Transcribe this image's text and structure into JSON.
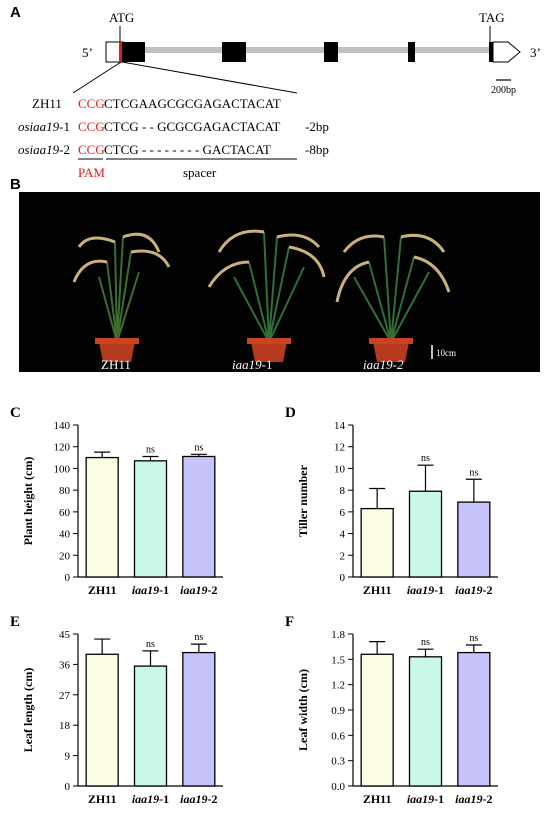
{
  "panelA": {
    "letter": "A",
    "five_prime": "5’",
    "three_prime": "3’",
    "atg": "ATG",
    "tag": "TAG",
    "scale": "200bp",
    "rows": [
      {
        "name": "ZH11",
        "pam": "CCG",
        "seq": "CTCGAAGCGCGAGACTACAT",
        "note": ""
      },
      {
        "name_italic": "osiaa19",
        "name_suffix": "-1",
        "pam": "CCG",
        "seq": "CTCG - - GCGCGAGACTACAT",
        "note": "-2bp"
      },
      {
        "name_italic": "osiaa19",
        "name_suffix": "-2",
        "pam": "CCG",
        "seq": "CTCG - - - - - - - - GACTACAT",
        "note": "-8bp"
      }
    ],
    "pam_label": "PAM",
    "spacer_label": "spacer",
    "colors": {
      "pam": "#e8191e",
      "intron": "#bfbfbf",
      "exon": "#000000"
    }
  },
  "panelB": {
    "letter": "B",
    "labels": [
      {
        "text": "ZH11",
        "italic": false
      },
      {
        "text_italic": "iaa19",
        "suffix": "-1"
      },
      {
        "text_italic": "iaa19-2",
        "suffix": ""
      }
    ],
    "scale": "10cm"
  },
  "chart_data": [
    {
      "letter": "C",
      "type": "bar",
      "categories": [
        "ZH11",
        "iaa19-1",
        "iaa19-2"
      ],
      "values": [
        110,
        107,
        111
      ],
      "errors": [
        5,
        4,
        2
      ],
      "sig": [
        "",
        "ns",
        "ns"
      ],
      "ylabel": "Plant height (cm)",
      "ylim": [
        0,
        140
      ],
      "yticks": [
        "0",
        "20",
        "40",
        "60",
        "80",
        "100",
        "120",
        "140"
      ],
      "colors": [
        "#fdfde3",
        "#c9f8ea",
        "#c6c4fb"
      ]
    },
    {
      "letter": "D",
      "type": "bar",
      "categories": [
        "ZH11",
        "iaa19-1",
        "iaa19-2"
      ],
      "values": [
        6.3,
        7.9,
        6.9
      ],
      "errors": [
        1.85,
        2.4,
        2.1
      ],
      "sig": [
        "",
        "ns",
        "ns"
      ],
      "ylabel": "Tiller number",
      "ylim": [
        0,
        14
      ],
      "yticks": [
        "0",
        "2",
        "4",
        "6",
        "8",
        "10",
        "12",
        "14"
      ],
      "colors": [
        "#fdfde3",
        "#c9f8ea",
        "#c6c4fb"
      ]
    },
    {
      "letter": "E",
      "type": "bar",
      "categories": [
        "ZH11",
        "iaa19-1",
        "iaa19-2"
      ],
      "values": [
        39,
        35.5,
        39.5
      ],
      "errors": [
        4.5,
        4.5,
        2.5
      ],
      "sig": [
        "",
        "ns",
        "ns"
      ],
      "ylabel": "Leaf length (cm)",
      "ylim": [
        0,
        45
      ],
      "yticks": [
        "0",
        "9",
        "18",
        "27",
        "36",
        "45"
      ],
      "colors": [
        "#fdfde3",
        "#c9f8ea",
        "#c6c4fb"
      ]
    },
    {
      "letter": "F",
      "type": "bar",
      "categories": [
        "ZH11",
        "iaa19-1",
        "iaa19-2"
      ],
      "values": [
        1.56,
        1.53,
        1.58
      ],
      "errors": [
        0.15,
        0.09,
        0.09
      ],
      "sig": [
        "",
        "ns",
        "ns"
      ],
      "ylabel": "Leaf width (cm)",
      "ylim": [
        0,
        1.8
      ],
      "yticks": [
        "0.0",
        "0.3",
        "0.6",
        "0.9",
        "1.2",
        "1.5",
        "1.8"
      ],
      "colors": [
        "#fdfde3",
        "#c9f8ea",
        "#c6c4fb"
      ]
    }
  ]
}
